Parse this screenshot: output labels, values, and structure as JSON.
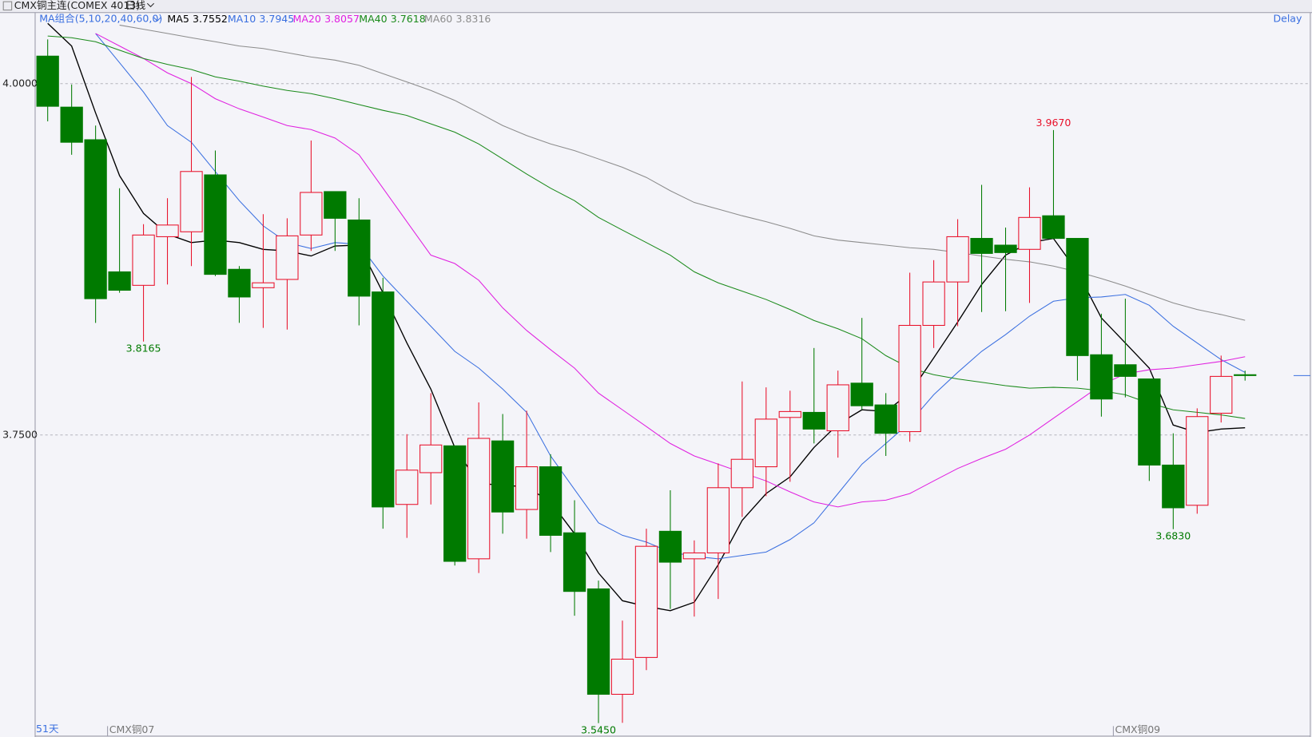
{
  "chart_data": {
    "type": "candlestick",
    "title": "CMX铜主连(COMEX 4013)",
    "period": "日线",
    "indicator_label": "MA组合(5,10,20,40,60,0)",
    "status": "Delay",
    "count_label": "51天",
    "categories": [
      null,
      null,
      null,
      "CMX铜07",
      null,
      null,
      null,
      null,
      null,
      null,
      null,
      null,
      null,
      null,
      null,
      null,
      null,
      null,
      null,
      null,
      null,
      null,
      null,
      null,
      null,
      null,
      null,
      null,
      null,
      null,
      null,
      null,
      null,
      null,
      null,
      null,
      null,
      null,
      null,
      null,
      null,
      null,
      null,
      null,
      null,
      "CMX铜09",
      null,
      null,
      null,
      null,
      null
    ],
    "open": [
      4.0196,
      3.9833,
      3.9601,
      3.8661,
      3.8565,
      3.8911,
      3.8946,
      3.9351,
      3.8679,
      3.8548,
      3.8607,
      3.8923,
      3.9232,
      3.903,
      3.8518,
      3.7006,
      3.7232,
      3.7423,
      3.6619,
      3.7458,
      3.697,
      3.7274,
      3.6804,
      3.6405,
      3.5655,
      3.5917,
      3.6815,
      3.6619,
      3.6661,
      3.7125,
      3.7274,
      3.7625,
      3.7661,
      3.753,
      3.7869,
      3.7714,
      3.7524,
      3.828,
      3.8589,
      3.8899,
      3.8851,
      3.8821,
      3.906,
      3.8899,
      3.8071,
      3.8,
      3.7899,
      3.7286,
      3.7,
      3.7655,
      3.7929
    ],
    "high": [
      4.0315,
      3.9994,
      3.9702,
      3.9256,
      3.9,
      3.9185,
      4.0048,
      3.9524,
      3.8702,
      3.9071,
      3.9042,
      3.9595,
      3.9232,
      3.9185,
      3.8619,
      3.7506,
      3.7798,
      3.7423,
      3.7732,
      3.7649,
      3.7673,
      3.7363,
      3.7036,
      3.6464,
      3.6179,
      3.6833,
      3.7107,
      3.675,
      3.7298,
      3.7881,
      3.7839,
      3.7815,
      3.8119,
      3.7958,
      3.8333,
      3.7798,
      3.8655,
      3.8744,
      3.9036,
      3.928,
      3.8976,
      3.9262,
      3.967,
      3.8899,
      3.8363,
      3.847,
      3.7899,
      3.7512,
      3.769,
      3.8065,
      3.7958
    ],
    "low": [
      3.9732,
      3.9494,
      3.8298,
      3.8512,
      3.8165,
      3.8571,
      3.8702,
      3.8631,
      3.8298,
      3.8262,
      3.825,
      3.881,
      3.881,
      3.828,
      3.6833,
      3.6768,
      3.7006,
      3.6571,
      3.6518,
      3.6798,
      3.6762,
      3.6667,
      3.6214,
      3.545,
      3.5452,
      3.5827,
      3.6262,
      3.6208,
      3.6333,
      3.6917,
      3.7065,
      3.7167,
      3.744,
      3.7339,
      3.7679,
      3.7351,
      3.7452,
      3.8119,
      3.8274,
      3.8375,
      3.8381,
      3.844,
      3.8899,
      3.7887,
      3.7631,
      3.7768,
      3.7173,
      3.683,
      3.694,
      3.7589,
      3.7887
    ],
    "close": [
      3.9839,
      3.9583,
      3.847,
      3.853,
      3.8923,
      3.8994,
      3.9375,
      3.8643,
      3.8482,
      3.8583,
      3.8917,
      3.9226,
      3.9042,
      3.8488,
      3.6988,
      3.725,
      3.7429,
      3.6601,
      3.7476,
      3.6952,
      3.7274,
      3.6786,
      3.6387,
      3.5655,
      3.5905,
      3.6708,
      3.6595,
      3.6661,
      3.7125,
      3.7327,
      3.7613,
      3.7667,
      3.7542,
      3.7857,
      3.7708,
      3.7512,
      3.828,
      3.8589,
      3.8911,
      3.8792,
      3.8798,
      3.9048,
      3.8899,
      3.8065,
      3.7756,
      3.7917,
      3.7286,
      3.6982,
      3.7631,
      3.7917,
      3.7929
    ],
    "high_labels": [
      null,
      null,
      null,
      null,
      null,
      null,
      null,
      null,
      null,
      null,
      null,
      null,
      null,
      null,
      null,
      null,
      null,
      null,
      null,
      null,
      null,
      null,
      null,
      null,
      null,
      null,
      null,
      null,
      null,
      null,
      null,
      null,
      null,
      null,
      null,
      null,
      null,
      null,
      null,
      null,
      null,
      null,
      "3.9670",
      null,
      null,
      null,
      null,
      null,
      null,
      null,
      null
    ],
    "low_labels": [
      null,
      null,
      null,
      null,
      "3.8165",
      null,
      null,
      null,
      null,
      null,
      null,
      null,
      null,
      null,
      null,
      null,
      null,
      null,
      null,
      null,
      null,
      null,
      null,
      "3.5450",
      null,
      null,
      null,
      null,
      null,
      null,
      null,
      null,
      null,
      null,
      null,
      null,
      null,
      null,
      null,
      null,
      null,
      null,
      null,
      null,
      null,
      null,
      null,
      "3.6830",
      null,
      null,
      null
    ],
    "up_color": "#e8102a",
    "down_color": "#007a00",
    "series": [
      {
        "name": "MA5",
        "legend_value": "3.7552",
        "color": "#000000",
        "values": [
          4.0429,
          4.0268,
          3.9792,
          3.9345,
          3.9077,
          3.8929,
          3.8869,
          3.8887,
          3.8869,
          3.8821,
          3.881,
          3.8774,
          3.8845,
          3.8851,
          3.8512,
          3.8155,
          3.7827,
          3.7411,
          3.7155,
          3.7143,
          3.7131,
          3.7024,
          3.6798,
          3.6518,
          3.6321,
          3.628,
          3.625,
          3.631,
          3.6577,
          3.6893,
          3.7083,
          3.7202,
          3.7411,
          3.7577,
          3.7679,
          3.7667,
          3.7798,
          3.8048,
          3.8304,
          3.8571,
          3.878,
          3.8869,
          3.8899,
          3.8661,
          3.8333,
          3.8155,
          3.7976,
          3.7571,
          3.7518,
          3.7542,
          3.7552
        ]
      },
      {
        "name": "MA10",
        "legend_value": "3.7945",
        "color": "#3a6fe0",
        "values": [
          null,
          null,
          4.0357,
          4.0149,
          3.994,
          3.9702,
          3.9583,
          3.9375,
          3.9167,
          3.8988,
          3.8869,
          3.8827,
          3.8869,
          3.8857,
          3.8631,
          3.8452,
          3.8274,
          3.8095,
          3.7976,
          3.7827,
          3.7661,
          3.7351,
          3.7113,
          3.6875,
          3.6786,
          3.6738,
          3.6667,
          3.6637,
          3.6619,
          3.6643,
          3.6667,
          3.6756,
          3.6875,
          3.7083,
          3.7292,
          3.744,
          3.7589,
          3.7786,
          3.7946,
          3.8095,
          3.8214,
          3.8345,
          3.8452,
          3.8476,
          3.8482,
          3.85,
          3.8423,
          3.8274,
          3.8155,
          3.8036,
          3.7945
        ]
      },
      {
        "name": "MA20",
        "legend_value": "3.8057",
        "color": "#e020e0",
        "values": [
          null,
          null,
          4.0357,
          4.0268,
          4.0179,
          4.0077,
          4.0,
          3.9893,
          3.9821,
          3.9762,
          3.9702,
          3.9673,
          3.9613,
          3.9494,
          3.9256,
          3.9018,
          3.878,
          3.872,
          3.8601,
          3.8405,
          3.8244,
          3.8107,
          3.7976,
          3.7798,
          3.7679,
          3.756,
          3.744,
          3.7351,
          3.7292,
          3.7232,
          3.7173,
          3.7095,
          3.7024,
          3.6988,
          3.7024,
          3.7036,
          3.7083,
          3.7173,
          3.7262,
          3.7333,
          3.7399,
          3.75,
          3.7619,
          3.7738,
          3.7857,
          3.7935,
          3.7964,
          3.7976,
          3.8,
          3.8024,
          3.8057
        ]
      },
      {
        "name": "MA40",
        "legend_value": "3.7618",
        "color": "#1a8a1a",
        "values": [
          4.0339,
          4.0327,
          4.0298,
          4.0238,
          4.0179,
          4.0137,
          4.0101,
          4.0048,
          4.0018,
          3.9982,
          3.9952,
          3.9929,
          3.9893,
          3.9851,
          3.981,
          3.9774,
          3.9714,
          3.9655,
          3.9571,
          3.9464,
          3.9357,
          3.9256,
          3.9167,
          3.9048,
          3.8958,
          3.8869,
          3.878,
          3.8661,
          3.8583,
          3.8524,
          3.8464,
          3.8393,
          3.8315,
          3.8256,
          3.8185,
          3.8065,
          3.7976,
          3.7929,
          3.7899,
          3.7875,
          3.7851,
          3.7833,
          3.7839,
          3.7833,
          3.7815,
          3.7786,
          3.7726,
          3.7679,
          3.7661,
          3.7643,
          3.7618
        ]
      },
      {
        "name": "MA60",
        "legend_value": "3.8316",
        "color": "#8c8c8c",
        "values": [
          null,
          null,
          null,
          4.0417,
          4.0387,
          4.0357,
          4.0327,
          4.0298,
          4.0268,
          4.025,
          4.022,
          4.019,
          4.0167,
          4.0131,
          4.0071,
          4.0012,
          3.9952,
          3.9881,
          3.9792,
          3.9702,
          3.9631,
          3.9571,
          3.9524,
          3.9464,
          3.9405,
          3.9333,
          3.9238,
          3.9155,
          3.9107,
          3.906,
          3.9018,
          3.897,
          3.8917,
          3.8887,
          3.8869,
          3.8851,
          3.8833,
          3.8821,
          3.8798,
          3.8774,
          3.875,
          3.8732,
          3.8702,
          3.8661,
          3.8613,
          3.856,
          3.85,
          3.844,
          3.8393,
          3.8357,
          3.8316
        ]
      }
    ],
    "ylim": [
      3.5357,
      4.0506
    ],
    "yticks": [
      {
        "value": 4,
        "label": "4.0000"
      },
      {
        "value": 3.75,
        "label": "3.7500"
      }
    ],
    "grid": true
  }
}
